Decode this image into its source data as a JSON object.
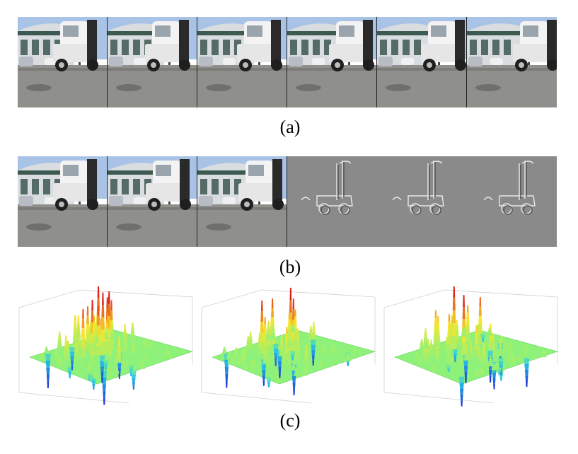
{
  "figure": {
    "captions": {
      "a": "(a)",
      "b": "(b)",
      "c": "(c)"
    },
    "row_a": {
      "frames": [
        "video-frame",
        "video-frame",
        "video-frame",
        "video-frame",
        "video-frame",
        "video-frame"
      ]
    },
    "row_b": {
      "frames": [
        "rgb-frame",
        "rgb-frame",
        "rgb-frame",
        "difference-frame",
        "difference-frame",
        "difference-frame"
      ]
    },
    "row_c": {
      "plots": [
        "surface-plot",
        "surface-plot",
        "surface-plot"
      ]
    },
    "colors": {
      "sky": "#a9c3e6",
      "building": "#d9dde0",
      "road": "#8f8f8c",
      "truck": "#f3f3f3",
      "diff_bg": "#8a8a8a",
      "surface_mid": "#8ef27a",
      "surface_high": "#e0201a",
      "surface_low": "#1a3ad8"
    }
  }
}
